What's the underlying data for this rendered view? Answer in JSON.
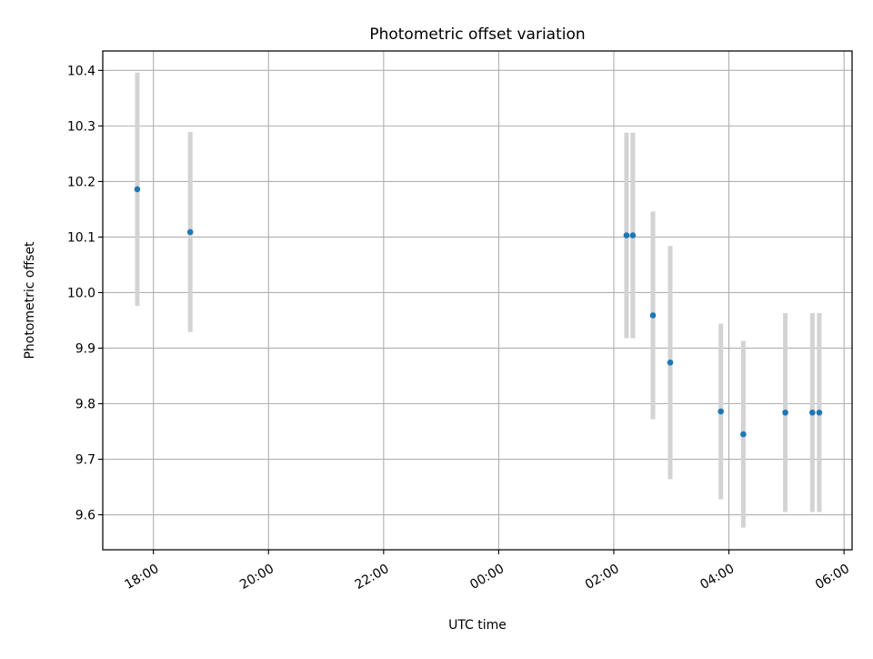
{
  "chart_data": {
    "type": "scatter",
    "title": "Photometric offset variation",
    "xlabel": "UTC time",
    "ylabel": "Photometric offset",
    "grid": true,
    "x_axis": {
      "unit": "hours since 17:00 UTC (timeline wraps past midnight)",
      "range": [
        16.12,
        29.14
      ],
      "ticks": [
        {
          "value": 17,
          "label": "18:00"
        },
        {
          "value": 19,
          "label": "20:00"
        },
        {
          "value": 21,
          "label": "22:00"
        },
        {
          "value": 23,
          "label": "00:00"
        },
        {
          "value": 25,
          "label": "02:00"
        },
        {
          "value": 27,
          "label": "04:00"
        },
        {
          "value": 29,
          "label": "06:00"
        }
      ]
    },
    "y_axis": {
      "range": [
        9.537,
        10.435
      ],
      "ticks": [
        9.6,
        9.7,
        9.8,
        9.9,
        10.0,
        10.1,
        10.2,
        10.3,
        10.4
      ],
      "tick_labels": [
        "9.6",
        "9.7",
        "9.8",
        "9.9",
        "10.0",
        "10.1",
        "10.2",
        "10.3",
        "10.4"
      ]
    },
    "point_color": "#1f77b4",
    "errorbar_color": "#d3d3d3",
    "points": [
      {
        "time": "17:43",
        "x": 16.72,
        "y": 10.186,
        "err": 0.21
      },
      {
        "time": "18:38",
        "x": 17.64,
        "y": 10.109,
        "err": 0.18
      },
      {
        "time": "02:13",
        "x": 25.22,
        "y": 10.103,
        "err": 0.185
      },
      {
        "time": "02:20",
        "x": 25.33,
        "y": 10.103,
        "err": 0.185
      },
      {
        "time": "02:41",
        "x": 25.68,
        "y": 9.959,
        "err": 0.187
      },
      {
        "time": "02:59",
        "x": 25.98,
        "y": 9.874,
        "err": 0.21
      },
      {
        "time": "03:52",
        "x": 26.86,
        "y": 9.786,
        "err": 0.158
      },
      {
        "time": "04:15",
        "x": 27.25,
        "y": 9.745,
        "err": 0.168
      },
      {
        "time": "04:59",
        "x": 27.98,
        "y": 9.784,
        "err": 0.179
      },
      {
        "time": "05:27",
        "x": 28.45,
        "y": 9.784,
        "err": 0.179
      },
      {
        "time": "05:34",
        "x": 28.57,
        "y": 9.784,
        "err": 0.179
      }
    ]
  }
}
